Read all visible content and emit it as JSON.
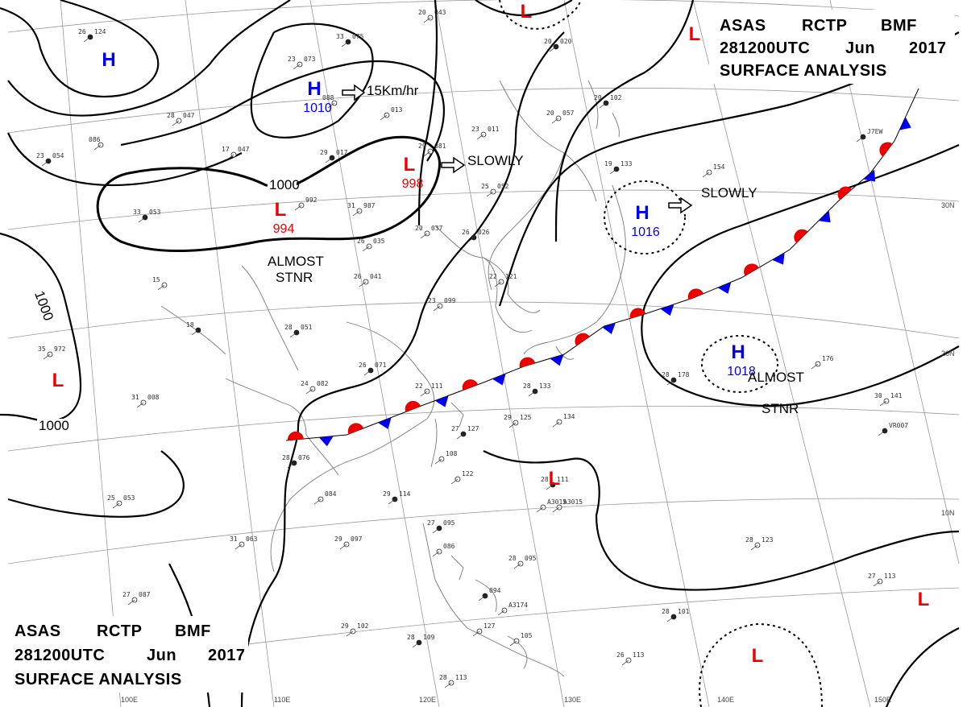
{
  "header": {
    "line1": [
      "ASAS",
      "RCTP",
      "BMF"
    ],
    "line2": [
      "281200UTC",
      "Jun",
      "2017"
    ],
    "line3": "SURFACE ANALYSIS"
  },
  "colors": {
    "high": "#0000ee",
    "low": "#ee0000",
    "isobar": "#000000",
    "coast": "#888888"
  },
  "lat_labels": [
    "30N",
    "20N",
    "10N"
  ],
  "lon_labels": [
    "100E",
    "110E",
    "120E",
    "130E",
    "140E",
    "150E"
  ],
  "isobar_labels": {
    "a": "1000",
    "b": "1000",
    "c": "1000"
  },
  "systems": [
    {
      "type": "H",
      "value": "",
      "color": "high"
    },
    {
      "type": "H",
      "value": "1010",
      "color": "high"
    },
    {
      "type": "L",
      "value": "998",
      "color": "low"
    },
    {
      "type": "L",
      "value": "994",
      "color": "low"
    },
    {
      "type": "H",
      "value": "1016",
      "color": "high"
    },
    {
      "type": "H",
      "value": "1018",
      "color": "high"
    },
    {
      "type": "L",
      "value": "",
      "color": "low"
    },
    {
      "type": "L",
      "value": "",
      "color": "low"
    },
    {
      "type": "L",
      "value": "",
      "color": "low"
    },
    {
      "type": "L",
      "value": "",
      "color": "low"
    },
    {
      "type": "L",
      "value": "",
      "color": "low"
    },
    {
      "type": "L",
      "value": "",
      "color": "low"
    }
  ],
  "annotations": {
    "move_h1010": "15Km/hr",
    "move_l998": "SLOWLY",
    "move_h1016": "SLOWLY",
    "stnr_l994": [
      "ALMOST",
      "STNR"
    ],
    "stnr_h1018": [
      "ALMOST",
      "STNR"
    ]
  },
  "stations": [
    {
      "t": "26",
      "p": "124"
    },
    {
      "t": "28",
      "p": "047"
    },
    {
      "t": "17",
      "p": "047"
    },
    {
      "t": "23",
      "p": "054"
    },
    {
      "t": "086",
      "p": ""
    },
    {
      "t": "23",
      "p": "073"
    },
    {
      "t": "33",
      "p": "075"
    },
    {
      "t": "088",
      "p": ""
    },
    {
      "t": "",
      "p": "013"
    },
    {
      "t": "29",
      "p": "017"
    },
    {
      "t": "",
      "p": "992"
    },
    {
      "t": "31",
      "p": "987"
    },
    {
      "t": "33",
      "p": "053"
    },
    {
      "t": "26",
      "p": "035"
    },
    {
      "t": "20",
      "p": "043"
    },
    {
      "t": "20",
      "p": "020"
    },
    {
      "t": "23",
      "p": "011"
    },
    {
      "t": "20",
      "p": "057"
    },
    {
      "t": "20",
      "p": "102"
    },
    {
      "t": "29",
      "p": "081"
    },
    {
      "t": "25",
      "p": "052"
    },
    {
      "t": "19",
      "p": "133"
    },
    {
      "t": "",
      "p": "154"
    },
    {
      "t": "20",
      "p": "037"
    },
    {
      "t": "26",
      "p": "026"
    },
    {
      "t": "22",
      "p": "121"
    },
    {
      "t": "23",
      "p": "099"
    },
    {
      "t": "28",
      "p": "051"
    },
    {
      "t": "26",
      "p": "041"
    },
    {
      "t": "15",
      "p": ""
    },
    {
      "t": "18",
      "p": ""
    },
    {
      "t": "35",
      "p": "972"
    },
    {
      "t": "31",
      "p": "008"
    },
    {
      "t": "26",
      "p": "071"
    },
    {
      "t": "24",
      "p": "082"
    },
    {
      "t": "22",
      "p": "111"
    },
    {
      "t": "28",
      "p": "133"
    },
    {
      "t": "29",
      "p": "125"
    },
    {
      "t": "",
      "p": "134"
    },
    {
      "t": "27",
      "p": "127"
    },
    {
      "t": "",
      "p": "108"
    },
    {
      "t": "",
      "p": "122"
    },
    {
      "t": "28",
      "p": "178"
    },
    {
      "t": "",
      "p": "176"
    },
    {
      "t": "30",
      "p": "141"
    },
    {
      "t": "28",
      "p": "076"
    },
    {
      "t": "25",
      "p": "053"
    },
    {
      "t": "",
      "p": "084"
    },
    {
      "t": "29",
      "p": "114"
    },
    {
      "t": "29",
      "p": "097"
    },
    {
      "t": "31",
      "p": "063"
    },
    {
      "t": "27",
      "p": "095"
    },
    {
      "t": "",
      "p": "086"
    },
    {
      "t": "28",
      "p": "095"
    },
    {
      "t": "",
      "p": "094"
    },
    {
      "t": "27",
      "p": "087"
    },
    {
      "t": "29",
      "p": "102"
    },
    {
      "t": "28",
      "p": "109"
    },
    {
      "t": "",
      "p": "127"
    },
    {
      "t": "",
      "p": "105"
    },
    {
      "t": "28",
      "p": "111"
    },
    {
      "t": "28",
      "p": "123"
    },
    {
      "t": "27",
      "p": "113"
    },
    {
      "t": "28",
      "p": "101"
    },
    {
      "t": "26",
      "p": "113"
    },
    {
      "t": "28",
      "p": "113"
    },
    {
      "t": "",
      "p": "VR007"
    },
    {
      "t": "",
      "p": "A3015"
    },
    {
      "t": "",
      "p": "A3174"
    },
    {
      "t": "",
      "p": "J7EW"
    },
    {
      "t": "",
      "p": "A3015"
    }
  ]
}
